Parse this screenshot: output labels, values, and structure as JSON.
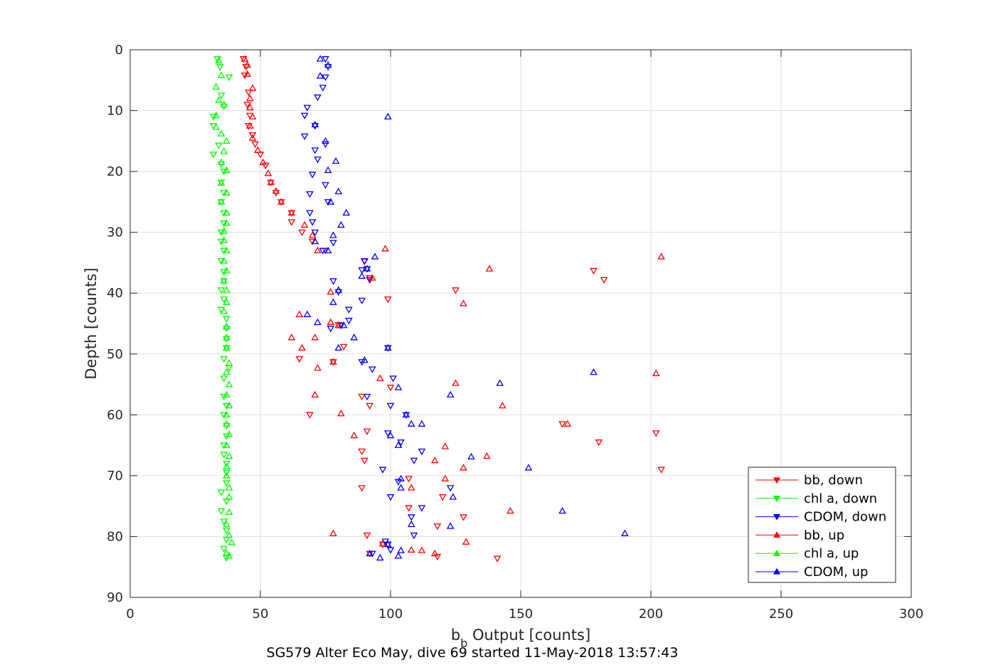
{
  "chart_data": {
    "type": "scatter",
    "title": "SG579 Alter Eco May, dive 69 started 11-May-2018 13:57:43",
    "xlabel_main": "b",
    "xlabel_sub": "b",
    "xlabel_rest": " Output [counts]",
    "ylabel": "Depth [counts]",
    "xlim": [
      0,
      300
    ],
    "ylim": [
      0,
      90
    ],
    "y_reversed": true,
    "x_ticks": [
      "0",
      "50",
      "100",
      "150",
      "200",
      "250",
      "300"
    ],
    "y_ticks": [
      "0",
      "10",
      "20",
      "30",
      "40",
      "50",
      "60",
      "70",
      "80",
      "90"
    ],
    "grid": true,
    "legend_position": "bottom-right",
    "series": [
      {
        "name": "bb, down",
        "color": "#ff0000",
        "marker": "triangle-down",
        "points": [
          [
            43.5,
            1.5
          ],
          [
            44.5,
            2.8
          ],
          [
            44,
            4.2
          ],
          [
            45.5,
            7.0
          ],
          [
            45,
            9.0
          ],
          [
            46,
            10.8
          ],
          [
            45.5,
            12.5
          ],
          [
            47,
            14.0
          ],
          [
            48,
            15.5
          ],
          [
            50,
            17.2
          ],
          [
            52,
            19.0
          ],
          [
            54,
            21.8
          ],
          [
            56,
            23.5
          ],
          [
            58,
            25.0
          ],
          [
            62,
            26.8
          ],
          [
            62,
            28.3
          ],
          [
            66,
            30.0
          ],
          [
            70,
            31.5
          ],
          [
            75,
            33.0
          ],
          [
            90,
            34.8
          ],
          [
            92,
            37.5
          ],
          [
            178,
            36.3
          ],
          [
            182,
            37.8
          ],
          [
            125,
            39.5
          ],
          [
            99,
            41.0
          ],
          [
            80,
            45.2
          ],
          [
            82,
            48.8
          ],
          [
            65,
            50.8
          ],
          [
            78,
            51.3
          ],
          [
            100,
            55.5
          ],
          [
            89,
            57.0
          ],
          [
            92,
            58.5
          ],
          [
            69,
            60.0
          ],
          [
            91,
            62.7
          ],
          [
            89,
            66.0
          ],
          [
            90,
            67.5
          ],
          [
            107,
            70.5
          ],
          [
            180,
            64.5
          ],
          [
            202,
            63.0
          ],
          [
            166,
            61.5
          ],
          [
            204,
            69.0
          ],
          [
            89,
            72.0
          ],
          [
            120,
            73.5
          ],
          [
            107,
            75.3
          ],
          [
            128,
            76.8
          ],
          [
            118,
            78.3
          ],
          [
            91,
            79.8
          ],
          [
            97,
            81.3
          ],
          [
            92,
            82.8
          ],
          [
            118,
            83.3
          ],
          [
            141,
            83.6
          ]
        ]
      },
      {
        "name": "chl a, down",
        "color": "#00ff00",
        "marker": "triangle-down",
        "points": [
          [
            33.5,
            1.5
          ],
          [
            34.5,
            2.8
          ],
          [
            38,
            4.5
          ],
          [
            35,
            7.5
          ],
          [
            36,
            9.3
          ],
          [
            32,
            11.0
          ],
          [
            32,
            12.5
          ],
          [
            34,
            15.7
          ],
          [
            32,
            17.2
          ],
          [
            35,
            18.8
          ],
          [
            36,
            20.0
          ],
          [
            35,
            21.8
          ],
          [
            36,
            23.5
          ],
          [
            35,
            25.0
          ],
          [
            36,
            26.8
          ],
          [
            36,
            28.5
          ],
          [
            35,
            30.0
          ],
          [
            35,
            31.5
          ],
          [
            36,
            33.0
          ],
          [
            35,
            34.7
          ],
          [
            36,
            36.5
          ],
          [
            36,
            38.0
          ],
          [
            35,
            39.5
          ],
          [
            36,
            41.0
          ],
          [
            35,
            42.7
          ],
          [
            37,
            44.2
          ],
          [
            37,
            45.8
          ],
          [
            37,
            47.5
          ],
          [
            37,
            49.0
          ],
          [
            36,
            50.8
          ],
          [
            38,
            52.3
          ],
          [
            36,
            54.0
          ],
          [
            36,
            57.0
          ],
          [
            37,
            58.5
          ],
          [
            36,
            60.0
          ],
          [
            37,
            61.8
          ],
          [
            37,
            63.5
          ],
          [
            36,
            65.0
          ],
          [
            36,
            66.5
          ],
          [
            37,
            68.0
          ],
          [
            37,
            69.5
          ],
          [
            37,
            71.2
          ],
          [
            35,
            72.7
          ],
          [
            37,
            74.2
          ],
          [
            35,
            75.8
          ],
          [
            36,
            77.5
          ],
          [
            37,
            79.0
          ],
          [
            37,
            80.5
          ],
          [
            36,
            82.0
          ],
          [
            37,
            83.5
          ]
        ]
      },
      {
        "name": "CDOM, down",
        "color": "#0000ff",
        "marker": "triangle-down",
        "points": [
          [
            75,
            1.5
          ],
          [
            76,
            2.8
          ],
          [
            75,
            4.5
          ],
          [
            74,
            6.2
          ],
          [
            72,
            7.8
          ],
          [
            68,
            9.5
          ],
          [
            67,
            10.8
          ],
          [
            71,
            12.5
          ],
          [
            67,
            14.2
          ],
          [
            75,
            15.5
          ],
          [
            71,
            16.5
          ],
          [
            72,
            18.0
          ],
          [
            70,
            20.5
          ],
          [
            75,
            22.2
          ],
          [
            69,
            23.7
          ],
          [
            76,
            25.0
          ],
          [
            69,
            26.8
          ],
          [
            70,
            28.3
          ],
          [
            71,
            30.0
          ],
          [
            74,
            33.0
          ],
          [
            78,
            31.7
          ],
          [
            90,
            34.7
          ],
          [
            89,
            36.2
          ],
          [
            91,
            36.0
          ],
          [
            92,
            37.8
          ],
          [
            78,
            38.0
          ],
          [
            80,
            39.8
          ],
          [
            89,
            41.2
          ],
          [
            84,
            42.7
          ],
          [
            84,
            44.5
          ],
          [
            77,
            45.8
          ],
          [
            81,
            45.3
          ],
          [
            89,
            51.3
          ],
          [
            99,
            49.0
          ],
          [
            93,
            52.5
          ],
          [
            101,
            54.0
          ],
          [
            91,
            57.0
          ],
          [
            100,
            58.5
          ],
          [
            106,
            60.0
          ],
          [
            99,
            63.0
          ],
          [
            104,
            64.5
          ],
          [
            112,
            66.0
          ],
          [
            109,
            67.5
          ],
          [
            97,
            69.0
          ],
          [
            103,
            71.0
          ],
          [
            123,
            72.0
          ],
          [
            100,
            73.5
          ],
          [
            112,
            75.3
          ],
          [
            108,
            76.8
          ],
          [
            109,
            79.8
          ],
          [
            93,
            82.8
          ],
          [
            99,
            81.3
          ],
          [
            100,
            82.2
          ],
          [
            98,
            80.8
          ]
        ]
      },
      {
        "name": "bb, up",
        "color": "#ff0000",
        "marker": "triangle-up",
        "points": [
          [
            44,
            1.5
          ],
          [
            45,
            2.5
          ],
          [
            45,
            4.0
          ],
          [
            47,
            6.3
          ],
          [
            46,
            8.0
          ],
          [
            46,
            9.5
          ],
          [
            47,
            11.0
          ],
          [
            46,
            12.5
          ],
          [
            47,
            14.5
          ],
          [
            49,
            16.5
          ],
          [
            51,
            18.5
          ],
          [
            53,
            20.3
          ],
          [
            54,
            21.8
          ],
          [
            56,
            23.2
          ],
          [
            58,
            25.0
          ],
          [
            62,
            26.8
          ],
          [
            67,
            28.8
          ],
          [
            70,
            30.5
          ],
          [
            72,
            33.0
          ],
          [
            98,
            32.7
          ],
          [
            204,
            34.0
          ],
          [
            138,
            36.0
          ],
          [
            93,
            37.5
          ],
          [
            77,
            39.8
          ],
          [
            128,
            41.7
          ],
          [
            65,
            43.5
          ],
          [
            77,
            44.8
          ],
          [
            80,
            45.3
          ],
          [
            62,
            47.3
          ],
          [
            71,
            47.3
          ],
          [
            66,
            49.0
          ],
          [
            78,
            51.3
          ],
          [
            72,
            52.3
          ],
          [
            125,
            54.8
          ],
          [
            202,
            53.2
          ],
          [
            96,
            54.0
          ],
          [
            71,
            56.7
          ],
          [
            143,
            58.5
          ],
          [
            81,
            59.8
          ],
          [
            168,
            61.5
          ],
          [
            86,
            63.4
          ],
          [
            121,
            65.2
          ],
          [
            128,
            68.7
          ],
          [
            137,
            66.8
          ],
          [
            117,
            67.5
          ],
          [
            108,
            72.0
          ],
          [
            121,
            70.5
          ],
          [
            146,
            75.8
          ],
          [
            129,
            80.9
          ],
          [
            78,
            79.5
          ],
          [
            112,
            82.3
          ],
          [
            117,
            82.8
          ],
          [
            108,
            82.2
          ],
          [
            97,
            81.2
          ]
        ]
      },
      {
        "name": "chl a, up",
        "color": "#00ff00",
        "marker": "triangle-up",
        "points": [
          [
            34,
            1.8
          ],
          [
            35,
            4.2
          ],
          [
            33,
            6.1
          ],
          [
            34,
            8.3
          ],
          [
            36,
            9.0
          ],
          [
            33,
            10.8
          ],
          [
            33,
            12.7
          ],
          [
            35,
            13.8
          ],
          [
            37,
            15.0
          ],
          [
            36,
            16.7
          ],
          [
            35,
            18.5
          ],
          [
            37,
            19.8
          ],
          [
            35,
            21.9
          ],
          [
            37,
            23.5
          ],
          [
            35,
            25.0
          ],
          [
            37,
            26.8
          ],
          [
            37,
            28.5
          ],
          [
            36,
            29.8
          ],
          [
            36,
            31.3
          ],
          [
            37,
            33.0
          ],
          [
            36,
            34.7
          ],
          [
            37,
            36.3
          ],
          [
            36,
            38.0
          ],
          [
            37,
            39.5
          ],
          [
            37,
            41.5
          ],
          [
            36,
            43.0
          ],
          [
            37,
            45.5
          ],
          [
            37,
            47.3
          ],
          [
            37,
            49.0
          ],
          [
            38,
            51.5
          ],
          [
            37,
            53.0
          ],
          [
            38,
            55.0
          ],
          [
            37,
            56.7
          ],
          [
            38,
            58.5
          ],
          [
            37,
            60.0
          ],
          [
            37,
            61.5
          ],
          [
            38,
            63.2
          ],
          [
            37,
            65.0
          ],
          [
            38,
            66.8
          ],
          [
            37,
            68.5
          ],
          [
            37,
            70.0
          ],
          [
            38,
            72.0
          ],
          [
            38,
            73.5
          ],
          [
            38,
            76.0
          ],
          [
            37,
            78.0
          ],
          [
            38,
            79.8
          ],
          [
            39,
            81.0
          ],
          [
            37,
            82.7
          ],
          [
            38,
            83.2
          ]
        ]
      },
      {
        "name": "CDOM, up",
        "color": "#0000ff",
        "marker": "triangle-up",
        "points": [
          [
            73,
            1.5
          ],
          [
            76,
            2.5
          ],
          [
            73,
            4.3
          ],
          [
            99,
            11.0
          ],
          [
            71,
            12.3
          ],
          [
            75,
            15.0
          ],
          [
            76,
            19.8
          ],
          [
            79,
            18.3
          ],
          [
            80,
            23.3
          ],
          [
            77,
            25.0
          ],
          [
            83,
            26.8
          ],
          [
            81,
            28.8
          ],
          [
            78,
            30.5
          ],
          [
            71,
            31.5
          ],
          [
            76,
            33.0
          ],
          [
            94,
            34.0
          ],
          [
            91,
            36.0
          ],
          [
            80,
            39.5
          ],
          [
            78,
            41.5
          ],
          [
            89,
            37.2
          ],
          [
            68,
            43.5
          ],
          [
            72,
            44.8
          ],
          [
            82,
            45.3
          ],
          [
            86,
            47.3
          ],
          [
            80,
            49.0
          ],
          [
            99,
            49.0
          ],
          [
            90,
            51.0
          ],
          [
            103,
            55.5
          ],
          [
            142,
            54.8
          ],
          [
            178,
            53.0
          ],
          [
            123,
            56.7
          ],
          [
            106,
            60.0
          ],
          [
            108,
            61.5
          ],
          [
            112,
            61.5
          ],
          [
            100,
            63.4
          ],
          [
            103,
            65.0
          ],
          [
            131,
            66.9
          ],
          [
            153,
            68.7
          ],
          [
            104,
            70.5
          ],
          [
            104,
            72.0
          ],
          [
            124,
            73.5
          ],
          [
            166,
            75.8
          ],
          [
            123,
            78.3
          ],
          [
            108,
            78.0
          ],
          [
            190,
            79.5
          ],
          [
            103,
            83.2
          ],
          [
            96,
            83.5
          ],
          [
            92,
            82.8
          ],
          [
            104,
            82.3
          ],
          [
            99,
            81.3
          ]
        ]
      }
    ]
  }
}
